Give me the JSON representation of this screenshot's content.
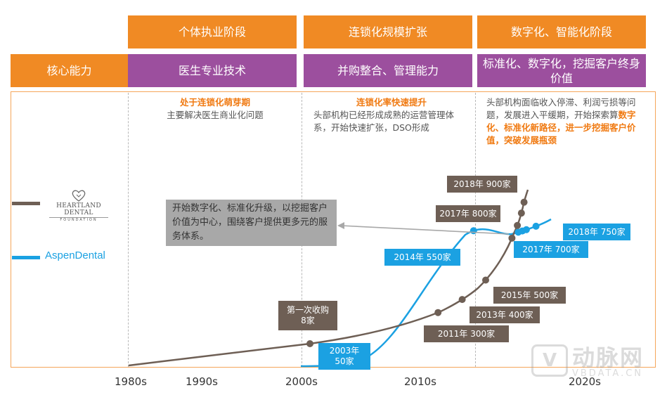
{
  "header": {
    "stages": [
      "个体执业阶段",
      "连锁化规模扩张",
      "数字化、智能化阶段"
    ],
    "core_label": "核心能力",
    "capabilities": [
      "医生专业技术",
      "并购整合、管理能力",
      "标准化、数字化，挖掘客户终身价值"
    ]
  },
  "descriptions": {
    "d1_title": "处于连锁化萌芽期",
    "d1_text": "主要解决医生商业化问题",
    "d2_title": "连锁化率快速提升",
    "d2_text": "头部机构已经形成成熟的运营管理体系，开始快速扩张，DSO形成",
    "d3_text": "头部机构面临收入停滞、利润亏损等问题，发展进入平缓期，开始探索算",
    "d3_highlight": "数字化、标准化新路径，进一步挖掘客户价值，突破发展瓶颈"
  },
  "callout": "开始数字化、标准化升级，以挖掘客户价值为中心，围绕客户提供更多元的服务体系。",
  "legend": {
    "heartland_top": "HEARTLAND DENTAL",
    "heartland_bottom": "FOUNDATION",
    "aspen": "AspenDental"
  },
  "watermark": {
    "cn": "动脉网",
    "en": "VBDATA.CN"
  },
  "chart_data": {
    "type": "line",
    "x_ticks": [
      "1980s",
      "1990s",
      "2000s",
      "2010s",
      "2020s"
    ],
    "series": [
      {
        "name": "Heartland Dental",
        "color": "#6e5f55",
        "points": [
          {
            "year": 1980,
            "value": 0
          },
          {
            "year": 2000,
            "value": 8,
            "label": "第一次收购\n8家"
          },
          {
            "year": 2011,
            "value": 300,
            "label": "2011年 300家"
          },
          {
            "year": 2013,
            "value": 400,
            "label": "2013年 400家"
          },
          {
            "year": 2015,
            "value": 500,
            "label": "2015年 500家"
          },
          {
            "year": 2017,
            "value": 800,
            "label": "2017年 800家"
          },
          {
            "year": 2018,
            "value": 900,
            "label": "2018年 900家"
          }
        ]
      },
      {
        "name": "Aspen Dental",
        "color": "#1ba1e2",
        "points": [
          {
            "year": 2003,
            "value": 50,
            "label": "2003年\n50家"
          },
          {
            "year": 2014,
            "value": 550,
            "label": "2014年 550家"
          },
          {
            "year": 2017,
            "value": 700,
            "label": "2017年 700家"
          },
          {
            "year": 2018,
            "value": 750,
            "label": "2018年 750家"
          }
        ]
      }
    ]
  }
}
